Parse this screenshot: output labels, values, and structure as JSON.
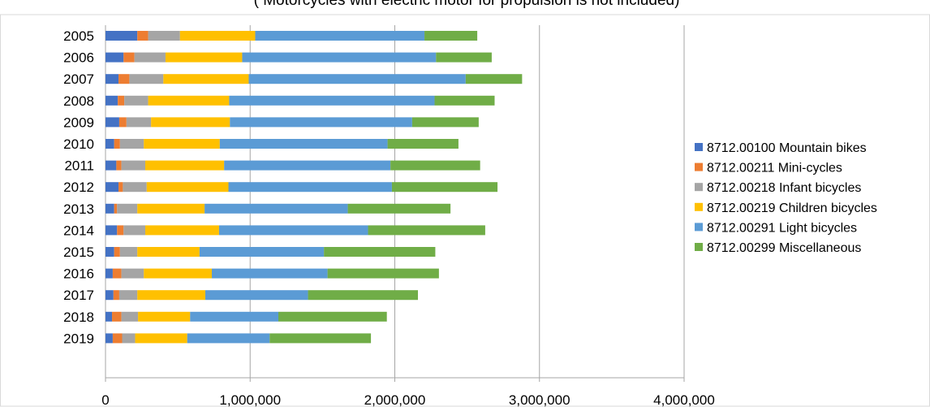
{
  "chart_data": {
    "type": "bar",
    "orientation": "horizontal",
    "stacked": true,
    "subtitle": "( Motorcycles with electric motor for propulsion  is not included)",
    "categories": [
      "2005",
      "2006",
      "2007",
      "2008",
      "2009",
      "2010",
      "2011",
      "2012",
      "2013",
      "2014",
      "2015",
      "2016",
      "2017",
      "2018",
      "2019"
    ],
    "series": [
      {
        "name": "8712.00100 Mountain bikes",
        "color": "#4472c4",
        "values": [
          220000,
          125000,
          90000,
          85000,
          95000,
          60000,
          75000,
          90000,
          60000,
          80000,
          60000,
          50000,
          55000,
          45000,
          50000
        ]
      },
      {
        "name": "8712.00211 Mini-cycles",
        "color": "#ed7d31",
        "values": [
          75000,
          75000,
          75000,
          45000,
          50000,
          40000,
          35000,
          30000,
          20000,
          45000,
          40000,
          60000,
          40000,
          65000,
          65000
        ]
      },
      {
        "name": "8712.00218 Infant bicycles",
        "color": "#a5a5a5",
        "values": [
          220000,
          215000,
          235000,
          165000,
          170000,
          165000,
          165000,
          165000,
          140000,
          150000,
          120000,
          155000,
          125000,
          115000,
          90000
        ]
      },
      {
        "name": "8712.00219 Children bicycles",
        "color": "#ffc000",
        "values": [
          520000,
          530000,
          590000,
          560000,
          545000,
          525000,
          545000,
          565000,
          465000,
          510000,
          430000,
          470000,
          470000,
          360000,
          360000
        ]
      },
      {
        "name": "8712.00291 Light bicycles",
        "color": "#5b9bd5",
        "values": [
          1170000,
          1340000,
          1500000,
          1420000,
          1260000,
          1160000,
          1150000,
          1130000,
          990000,
          1030000,
          860000,
          800000,
          710000,
          610000,
          570000
        ]
      },
      {
        "name": "8712.00299 Miscellaneous",
        "color": "#70ad47",
        "values": [
          365000,
          385000,
          390000,
          415000,
          460000,
          490000,
          620000,
          730000,
          710000,
          810000,
          770000,
          770000,
          760000,
          750000,
          700000
        ]
      }
    ],
    "xlim": [
      0,
      4000000
    ],
    "xticks": [
      0,
      1000000,
      2000000,
      3000000,
      4000000
    ],
    "xtick_labels": [
      "0",
      "1,000,000",
      "2,000,000",
      "3,000,000",
      "4,000,000"
    ],
    "grid": true,
    "legend_position": "right"
  }
}
